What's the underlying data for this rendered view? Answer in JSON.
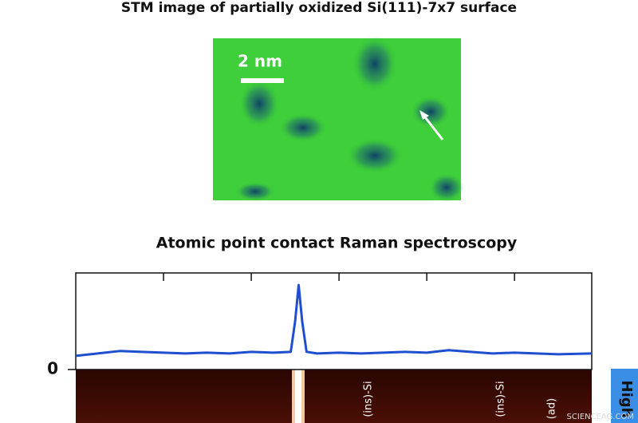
{
  "stm": {
    "title": "STM image of partially oxidized Si(111)-7x7 surface",
    "scale_bar": "2 nm"
  },
  "chart_data": {
    "type": "line",
    "title": "Atomic point contact Raman spectroscopy",
    "x": [
      0,
      0.25,
      0.5,
      0.75,
      1.0,
      1.25,
      1.5,
      1.75,
      2.0,
      2.25,
      2.45,
      2.5,
      2.54,
      2.58,
      2.63,
      2.75,
      3.0,
      3.25,
      3.5,
      3.75,
      4.0,
      4.25,
      4.5,
      4.75,
      5.0,
      5.25,
      5.5,
      5.88
    ],
    "values": [
      0.17,
      0.2,
      0.23,
      0.22,
      0.21,
      0.2,
      0.21,
      0.2,
      0.22,
      0.21,
      0.22,
      0.6,
      1.05,
      0.6,
      0.22,
      0.2,
      0.21,
      0.2,
      0.21,
      0.22,
      0.21,
      0.24,
      0.22,
      0.2,
      0.21,
      0.2,
      0.19,
      0.2
    ],
    "color": "#1f4fd1",
    "xlim": [
      0,
      5.88
    ],
    "xticks": [
      1,
      2,
      3,
      4,
      5
    ],
    "ylim": [
      0,
      1.2
    ],
    "yticks": [
      0
    ]
  },
  "heatmap": {
    "labels": [
      "(ins)-Si",
      "(ins)-Si",
      "(ad)"
    ],
    "colorbar_label": "High"
  },
  "watermark": "SCIENCEAG.COM"
}
